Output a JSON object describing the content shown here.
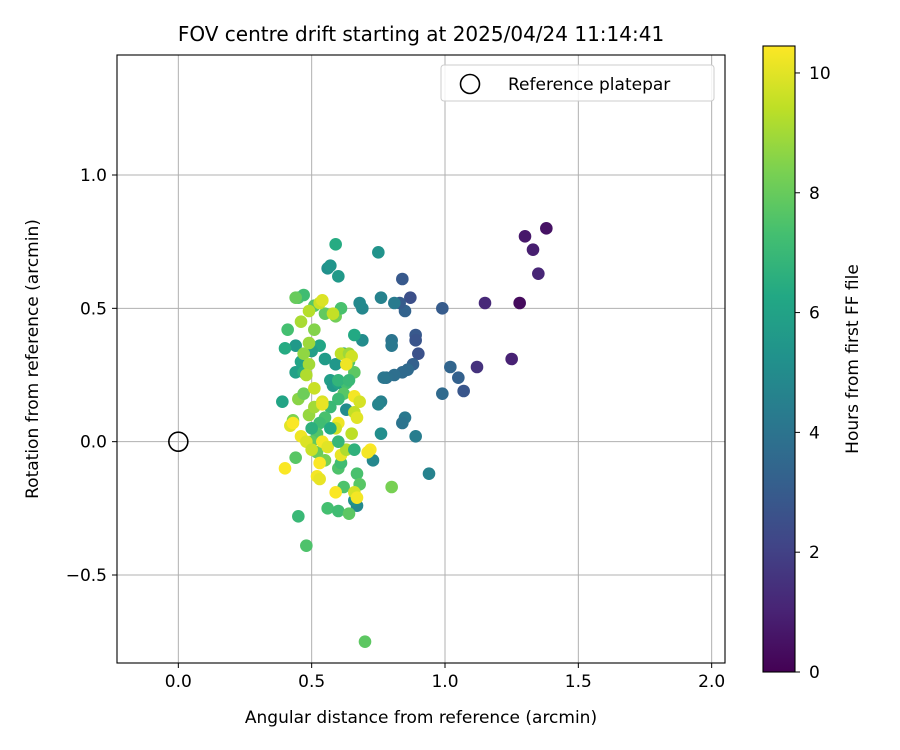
{
  "chart_data": {
    "type": "scatter",
    "title": "FOV centre drift starting at 2025/04/24 11:14:41",
    "xlabel": "Angular distance from reference (arcmin)",
    "ylabel": "Rotation from reference (arcmin)",
    "xlim": [
      -0.23,
      2.05
    ],
    "ylim": [
      -0.83,
      1.45
    ],
    "xticks": [
      0.0,
      0.5,
      1.0,
      1.5,
      2.0
    ],
    "xtick_labels": [
      "0.0",
      "0.5",
      "1.0",
      "1.5",
      "2.0"
    ],
    "yticks": [
      -0.5,
      0.0,
      0.5,
      1.0
    ],
    "ytick_labels": [
      "−0.5",
      "0.0",
      "0.5",
      "1.0"
    ],
    "grid": true,
    "legend": {
      "placement": "top-right",
      "entries": [
        {
          "label": "Reference platepar",
          "marker": "open-circle"
        }
      ]
    },
    "reference_point": {
      "x": 0.0,
      "y": 0.0
    },
    "colorbar": {
      "label": "Hours from first FF file",
      "colormap": "viridis",
      "range": [
        0,
        10.45
      ],
      "ticks": [
        0,
        2,
        4,
        6,
        8,
        10
      ],
      "tick_labels": [
        "0",
        "2",
        "4",
        "6",
        "8",
        "10"
      ]
    },
    "points": [
      {
        "x": 1.28,
        "y": 0.52,
        "c": 0.3
      },
      {
        "x": 1.38,
        "y": 0.8,
        "c": 0.5
      },
      {
        "x": 1.3,
        "y": 0.77,
        "c": 0.7
      },
      {
        "x": 1.33,
        "y": 0.72,
        "c": 0.9
      },
      {
        "x": 1.35,
        "y": 0.63,
        "c": 1.1
      },
      {
        "x": 1.25,
        "y": 0.31,
        "c": 1.0
      },
      {
        "x": 1.15,
        "y": 0.52,
        "c": 1.2
      },
      {
        "x": 1.12,
        "y": 0.28,
        "c": 1.5
      },
      {
        "x": 1.07,
        "y": 0.19,
        "c": 2.8
      },
      {
        "x": 1.05,
        "y": 0.24,
        "c": 3.2
      },
      {
        "x": 1.02,
        "y": 0.28,
        "c": 3.4
      },
      {
        "x": 0.99,
        "y": 0.5,
        "c": 3.0
      },
      {
        "x": 0.99,
        "y": 0.18,
        "c": 3.6
      },
      {
        "x": 0.9,
        "y": 0.33,
        "c": 2.6
      },
      {
        "x": 0.89,
        "y": 0.4,
        "c": 2.9
      },
      {
        "x": 0.89,
        "y": 0.38,
        "c": 2.7
      },
      {
        "x": 0.88,
        "y": 0.29,
        "c": 3.2
      },
      {
        "x": 0.87,
        "y": 0.54,
        "c": 2.5
      },
      {
        "x": 0.86,
        "y": 0.27,
        "c": 3.6
      },
      {
        "x": 0.85,
        "y": 0.49,
        "c": 3.3
      },
      {
        "x": 0.84,
        "y": 0.61,
        "c": 2.9
      },
      {
        "x": 0.83,
        "y": 0.52,
        "c": 3.0
      },
      {
        "x": 0.84,
        "y": 0.26,
        "c": 3.6
      },
      {
        "x": 0.81,
        "y": 0.25,
        "c": 3.8
      },
      {
        "x": 0.81,
        "y": 0.52,
        "c": 4.3
      },
      {
        "x": 0.8,
        "y": 0.38,
        "c": 4.0
      },
      {
        "x": 0.8,
        "y": 0.36,
        "c": 4.2
      },
      {
        "x": 0.78,
        "y": 0.24,
        "c": 3.9
      },
      {
        "x": 0.77,
        "y": 0.24,
        "c": 4.1
      },
      {
        "x": 0.85,
        "y": 0.09,
        "c": 4.2
      },
      {
        "x": 0.84,
        "y": 0.07,
        "c": 4.0
      },
      {
        "x": 0.89,
        "y": 0.02,
        "c": 4.4
      },
      {
        "x": 0.94,
        "y": -0.12,
        "c": 4.6
      },
      {
        "x": 0.76,
        "y": 0.15,
        "c": 4.5
      },
      {
        "x": 0.75,
        "y": 0.14,
        "c": 4.7
      },
      {
        "x": 0.76,
        "y": 0.03,
        "c": 5.1
      },
      {
        "x": 0.76,
        "y": 0.54,
        "c": 4.6
      },
      {
        "x": 0.75,
        "y": 0.71,
        "c": 5.3
      },
      {
        "x": 0.73,
        "y": -0.07,
        "c": 4.8
      },
      {
        "x": 0.69,
        "y": 0.5,
        "c": 4.8
      },
      {
        "x": 0.68,
        "y": 0.52,
        "c": 4.9
      },
      {
        "x": 0.69,
        "y": 0.38,
        "c": 5.0
      },
      {
        "x": 0.67,
        "y": -0.24,
        "c": 4.9
      },
      {
        "x": 0.66,
        "y": -0.22,
        "c": 5.2
      },
      {
        "x": 0.63,
        "y": 0.12,
        "c": 5.0
      },
      {
        "x": 0.56,
        "y": 0.65,
        "c": 5.2
      },
      {
        "x": 0.57,
        "y": 0.66,
        "c": 5.4
      },
      {
        "x": 0.6,
        "y": 0.62,
        "c": 5.6
      },
      {
        "x": 0.59,
        "y": 0.74,
        "c": 6.4
      },
      {
        "x": 0.66,
        "y": 0.4,
        "c": 6.3
      },
      {
        "x": 0.62,
        "y": 0.33,
        "c": 5.9
      },
      {
        "x": 0.59,
        "y": 0.29,
        "c": 5.5
      },
      {
        "x": 0.57,
        "y": 0.23,
        "c": 5.8
      },
      {
        "x": 0.58,
        "y": 0.21,
        "c": 5.6
      },
      {
        "x": 0.6,
        "y": 0.22,
        "c": 6.0
      },
      {
        "x": 0.55,
        "y": 0.31,
        "c": 5.7
      },
      {
        "x": 0.53,
        "y": 0.36,
        "c": 6.2
      },
      {
        "x": 0.5,
        "y": 0.34,
        "c": 5.8
      },
      {
        "x": 0.44,
        "y": 0.36,
        "c": 5.6
      },
      {
        "x": 0.44,
        "y": 0.26,
        "c": 5.9
      },
      {
        "x": 0.46,
        "y": 0.3,
        "c": 6.1
      },
      {
        "x": 0.4,
        "y": 0.35,
        "c": 6.4
      },
      {
        "x": 0.39,
        "y": 0.15,
        "c": 6.1
      },
      {
        "x": 0.47,
        "y": 0.26,
        "c": 6.5
      },
      {
        "x": 0.41,
        "y": 0.42,
        "c": 7.3
      },
      {
        "x": 0.45,
        "y": 0.54,
        "c": 7.5
      },
      {
        "x": 0.47,
        "y": 0.55,
        "c": 7.2
      },
      {
        "x": 0.51,
        "y": 0.51,
        "c": 7.7
      },
      {
        "x": 0.55,
        "y": 0.48,
        "c": 7.9
      },
      {
        "x": 0.59,
        "y": 0.47,
        "c": 8.2
      },
      {
        "x": 0.61,
        "y": 0.5,
        "c": 7.4
      },
      {
        "x": 0.64,
        "y": 0.3,
        "c": 7.6
      },
      {
        "x": 0.66,
        "y": 0.26,
        "c": 7.8
      },
      {
        "x": 0.63,
        "y": 0.22,
        "c": 7.3
      },
      {
        "x": 0.62,
        "y": 0.18,
        "c": 7.7
      },
      {
        "x": 0.6,
        "y": 0.16,
        "c": 7.1
      },
      {
        "x": 0.57,
        "y": 0.13,
        "c": 7.0
      },
      {
        "x": 0.55,
        "y": 0.09,
        "c": 7.4
      },
      {
        "x": 0.53,
        "y": 0.07,
        "c": 7.2
      },
      {
        "x": 0.52,
        "y": 0.03,
        "c": 7.6
      },
      {
        "x": 0.5,
        "y": 0.0,
        "c": 7.9
      },
      {
        "x": 0.52,
        "y": -0.04,
        "c": 8.0
      },
      {
        "x": 0.55,
        "y": -0.07,
        "c": 8.3
      },
      {
        "x": 0.6,
        "y": -0.1,
        "c": 7.5
      },
      {
        "x": 0.61,
        "y": -0.08,
        "c": 7.2
      },
      {
        "x": 0.67,
        "y": -0.12,
        "c": 7.4
      },
      {
        "x": 0.68,
        "y": -0.16,
        "c": 7.7
      },
      {
        "x": 0.62,
        "y": -0.17,
        "c": 7.5
      },
      {
        "x": 0.56,
        "y": -0.25,
        "c": 7.3
      },
      {
        "x": 0.6,
        "y": -0.26,
        "c": 7.2
      },
      {
        "x": 0.64,
        "y": -0.27,
        "c": 7.8
      },
      {
        "x": 0.45,
        "y": -0.28,
        "c": 7.0
      },
      {
        "x": 0.48,
        "y": -0.39,
        "c": 7.5
      },
      {
        "x": 0.8,
        "y": -0.17,
        "c": 8.3
      },
      {
        "x": 0.7,
        "y": -0.75,
        "c": 7.8
      },
      {
        "x": 0.44,
        "y": -0.06,
        "c": 7.7
      },
      {
        "x": 0.43,
        "y": 0.08,
        "c": 8.4
      },
      {
        "x": 0.45,
        "y": 0.16,
        "c": 8.6
      },
      {
        "x": 0.47,
        "y": 0.18,
        "c": 8.1
      },
      {
        "x": 0.49,
        "y": 0.1,
        "c": 8.8
      },
      {
        "x": 0.51,
        "y": 0.13,
        "c": 9.0
      },
      {
        "x": 0.47,
        "y": 0.33,
        "c": 8.7
      },
      {
        "x": 0.49,
        "y": 0.37,
        "c": 8.9
      },
      {
        "x": 0.51,
        "y": 0.42,
        "c": 8.5
      },
      {
        "x": 0.46,
        "y": 0.45,
        "c": 9.1
      },
      {
        "x": 0.49,
        "y": 0.49,
        "c": 9.3
      },
      {
        "x": 0.53,
        "y": 0.52,
        "c": 9.6
      },
      {
        "x": 0.54,
        "y": 0.53,
        "c": 9.9
      },
      {
        "x": 0.58,
        "y": 0.48,
        "c": 9.5
      },
      {
        "x": 0.61,
        "y": 0.33,
        "c": 9.4
      },
      {
        "x": 0.64,
        "y": 0.33,
        "c": 8.9
      },
      {
        "x": 0.65,
        "y": 0.32,
        "c": 9.7
      },
      {
        "x": 0.63,
        "y": 0.29,
        "c": 10.2
      },
      {
        "x": 0.49,
        "y": 0.29,
        "c": 9.0
      },
      {
        "x": 0.48,
        "y": 0.25,
        "c": 9.2
      },
      {
        "x": 0.51,
        "y": 0.2,
        "c": 9.6
      },
      {
        "x": 0.54,
        "y": 0.15,
        "c": 9.9
      },
      {
        "x": 0.54,
        "y": 0.14,
        "c": 10.1
      },
      {
        "x": 0.66,
        "y": 0.17,
        "c": 10.3
      },
      {
        "x": 0.68,
        "y": 0.15,
        "c": 9.8
      },
      {
        "x": 0.66,
        "y": 0.11,
        "c": 9.5
      },
      {
        "x": 0.67,
        "y": 0.09,
        "c": 10.0
      },
      {
        "x": 0.6,
        "y": 0.07,
        "c": 10.2
      },
      {
        "x": 0.59,
        "y": 0.05,
        "c": 9.7
      },
      {
        "x": 0.42,
        "y": 0.06,
        "c": 10.0
      },
      {
        "x": 0.43,
        "y": 0.07,
        "c": 10.4
      },
      {
        "x": 0.46,
        "y": 0.02,
        "c": 10.2
      },
      {
        "x": 0.48,
        "y": 0.0,
        "c": 9.9
      },
      {
        "x": 0.5,
        "y": -0.03,
        "c": 9.6
      },
      {
        "x": 0.54,
        "y": 0.0,
        "c": 10.3
      },
      {
        "x": 0.56,
        "y": -0.02,
        "c": 10.0
      },
      {
        "x": 0.61,
        "y": -0.05,
        "c": 10.1
      },
      {
        "x": 0.65,
        "y": 0.03,
        "c": 9.4
      },
      {
        "x": 0.63,
        "y": -0.03,
        "c": 9.2
      },
      {
        "x": 0.72,
        "y": -0.03,
        "c": 10.4
      },
      {
        "x": 0.71,
        "y": -0.04,
        "c": 10.3
      },
      {
        "x": 0.53,
        "y": -0.08,
        "c": 10.4
      },
      {
        "x": 0.52,
        "y": -0.13,
        "c": 10.3
      },
      {
        "x": 0.53,
        "y": -0.14,
        "c": 10.1
      },
      {
        "x": 0.4,
        "y": -0.1,
        "c": 10.4
      },
      {
        "x": 0.59,
        "y": -0.19,
        "c": 10.4
      },
      {
        "x": 0.66,
        "y": -0.19,
        "c": 9.8
      },
      {
        "x": 0.67,
        "y": -0.21,
        "c": 10.3
      },
      {
        "x": 0.44,
        "y": 0.54,
        "c": 8.0
      },
      {
        "x": 0.6,
        "y": 0.23,
        "c": 6.8
      },
      {
        "x": 0.64,
        "y": 0.23,
        "c": 7.0
      },
      {
        "x": 0.6,
        "y": 0.0,
        "c": 6.9
      },
      {
        "x": 0.66,
        "y": -0.03,
        "c": 6.7
      },
      {
        "x": 0.5,
        "y": 0.05,
        "c": 6.6
      },
      {
        "x": 0.57,
        "y": 0.05,
        "c": 6.3
      }
    ]
  }
}
